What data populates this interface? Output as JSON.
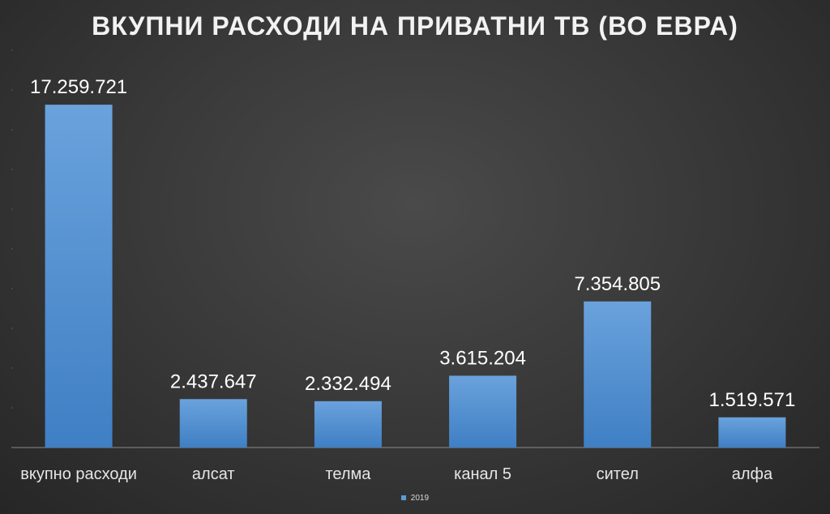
{
  "chart_data": {
    "type": "bar",
    "title": "ВКУПНИ РАСХОДИ НА ПРИВАТНИ ТВ (ВО ЕВРА)",
    "categories": [
      "вкупно расходи",
      "алсат",
      "телма",
      "канал 5",
      "сител",
      "алфа"
    ],
    "series": [
      {
        "name": "2019",
        "values": [
          17259721,
          2437647,
          2332494,
          3615204,
          7354805,
          1519571
        ],
        "labels": [
          "17.259.721",
          "2.437.647",
          "2.332.494",
          "3.615.204",
          "7.354.805",
          "1.519.571"
        ]
      }
    ],
    "ylim": [
      0,
      20000000
    ],
    "grid": true,
    "legend_position": "bottom",
    "colors": {
      "bar": "#5b9bd5",
      "bar_top": "#6aa2dc",
      "bar_bottom": "#3f7fc4"
    }
  }
}
